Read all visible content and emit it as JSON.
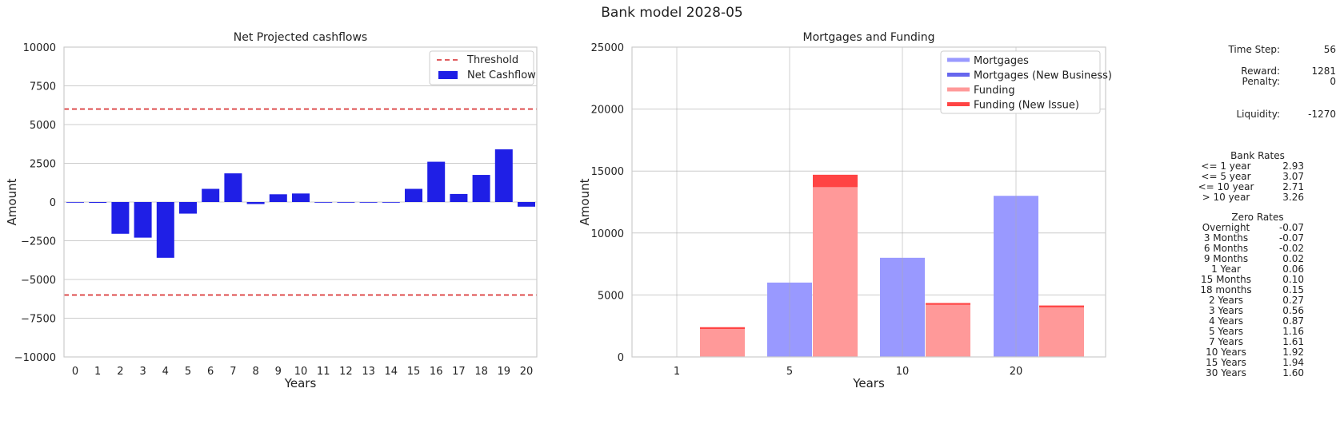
{
  "suptitle": "Bank model 2028-05",
  "chart_data": [
    {
      "type": "bar",
      "title": "Net Projected cashflows",
      "xlabel": "Years",
      "ylabel": "Amount",
      "ylim": [
        -10000,
        10000
      ],
      "yticks": [
        -10000,
        -7500,
        -5000,
        -2500,
        0,
        2500,
        5000,
        7500,
        10000
      ],
      "ytick_labels": [
        "−10000",
        "−7500",
        "−5000",
        "−2500",
        "0",
        "2500",
        "5000",
        "7500",
        "10000"
      ],
      "categories": [
        "0",
        "1",
        "2",
        "3",
        "4",
        "5",
        "6",
        "7",
        "8",
        "9",
        "10",
        "11",
        "12",
        "13",
        "14",
        "15",
        "16",
        "17",
        "18",
        "19",
        "20"
      ],
      "series": [
        {
          "name": "Net Cashflow",
          "color": "#1f1fe6",
          "values": [
            0,
            -50,
            -2050,
            -2300,
            -3600,
            -750,
            850,
            1850,
            -130,
            500,
            550,
            0,
            0,
            0,
            0,
            850,
            2600,
            520,
            1750,
            3400,
            -300
          ]
        }
      ],
      "threshold": {
        "name": "Threshold",
        "values": [
          6000,
          -6000
        ],
        "color": "#d62728"
      },
      "grid": "y",
      "legend": "top-right"
    },
    {
      "type": "bar",
      "title": "Mortgages and Funding",
      "xlabel": "Years",
      "ylabel": "Amount",
      "ylim": [
        0,
        25000
      ],
      "yticks": [
        0,
        5000,
        10000,
        15000,
        20000,
        25000
      ],
      "ytick_labels": [
        "0",
        "5000",
        "10000",
        "15000",
        "20000",
        "25000"
      ],
      "categories": [
        "1",
        "5",
        "10",
        "20"
      ],
      "series": [
        {
          "name": "Mortgages",
          "color": "#9999ff",
          "values": [
            0,
            6000,
            8000,
            13000
          ]
        },
        {
          "name": "Mortgages (New Business)",
          "color": "#6666ee",
          "values": [
            0,
            0,
            0,
            0
          ]
        },
        {
          "name": "Funding",
          "color": "#ff9999",
          "values": [
            2250,
            13700,
            4200,
            4000
          ]
        },
        {
          "name": "Funding (New Issue)",
          "color": "#ff4444",
          "values": [
            150,
            1000,
            150,
            150
          ]
        }
      ],
      "stacked_pairs": [
        [
          "Mortgages",
          "Mortgages (New Business)"
        ],
        [
          "Funding",
          "Funding (New Issue)"
        ]
      ],
      "grid": "both",
      "legend": "top-right"
    }
  ],
  "side_panel": {
    "time_step": {
      "label": "Time Step:",
      "value": "56"
    },
    "reward": {
      "label": "Reward:",
      "value": "1281"
    },
    "penalty": {
      "label": "Penalty:",
      "value": "0"
    },
    "liquidity": {
      "label": "Liquidity:",
      "value": "-1270"
    },
    "bank_rates": {
      "title": "Bank Rates",
      "rows": [
        {
          "label": "<= 1 year",
          "value": "2.93"
        },
        {
          "label": "<= 5 year",
          "value": "3.07"
        },
        {
          "label": "<= 10 year",
          "value": "2.71"
        },
        {
          "label": "> 10 year",
          "value": "3.26"
        }
      ]
    },
    "zero_rates": {
      "title": "Zero Rates",
      "rows": [
        {
          "label": "Overnight",
          "value": "-0.07"
        },
        {
          "label": "3 Months",
          "value": "-0.07"
        },
        {
          "label": "6 Months",
          "value": "-0.02"
        },
        {
          "label": "9 Months",
          "value": "0.02"
        },
        {
          "label": "1 Year",
          "value": "0.06"
        },
        {
          "label": "15 Months",
          "value": "0.10"
        },
        {
          "label": "18 months",
          "value": "0.15"
        },
        {
          "label": "2 Years",
          "value": "0.27"
        },
        {
          "label": "3 Years",
          "value": "0.56"
        },
        {
          "label": "4 Years",
          "value": "0.87"
        },
        {
          "label": "5 Years",
          "value": "1.16"
        },
        {
          "label": "7 Years",
          "value": "1.61"
        },
        {
          "label": "10 Years",
          "value": "1.92"
        },
        {
          "label": "15 Years",
          "value": "1.94"
        },
        {
          "label": "30 Years",
          "value": "1.60"
        }
      ]
    }
  }
}
